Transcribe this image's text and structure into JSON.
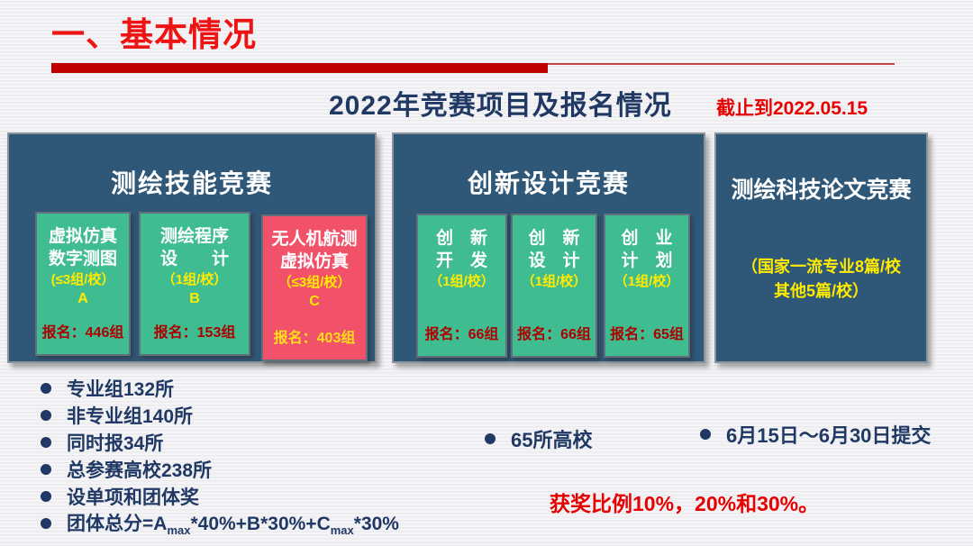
{
  "header": {
    "title": "一、基本情况"
  },
  "subtitle": {
    "title": "2022年竞赛项目及报名情况",
    "deadline_note": "截止到2022.05.15"
  },
  "panels": [
    {
      "title": "测绘技能竞赛",
      "boxes": [
        {
          "name_line1": "虚拟仿真",
          "name_line2": "数字测图",
          "quota": "(≤3组/校）",
          "letter": "A",
          "registration": "报名：446组"
        },
        {
          "name_line1": "测绘程序",
          "name_line2": "设　　计",
          "quota": "（1组/校）",
          "letter": "B",
          "registration": "报名：153组"
        },
        {
          "name_line1": "无人机航测",
          "name_line2": "虚拟仿真",
          "quota": "（≤3组/校）",
          "letter": "C",
          "registration": "报名：403组"
        }
      ]
    },
    {
      "title": "创新设计竞赛",
      "boxes": [
        {
          "name_line1": "创　新",
          "name_line2": "开　发",
          "quota": "（1组/校）",
          "registration": "报名：66组"
        },
        {
          "name_line1": "创　新",
          "name_line2": "设　计",
          "quota": "（1组/校）",
          "registration": "报名：66组"
        },
        {
          "name_line1": "创　业",
          "name_line2": "计　划",
          "quota": "（1组/校）",
          "registration": "报名：65组"
        }
      ]
    },
    {
      "title": "测绘科技论文竞赛",
      "note_line1": "（国家一流专业8篇/校",
      "note_line2": "其他5篇/校）"
    }
  ],
  "stats": {
    "left_bullets": [
      [
        {
          "t": "专业组132所"
        }
      ],
      [
        {
          "t": "非专业组140所"
        }
      ],
      [
        {
          "t": "同时报34所"
        }
      ],
      [
        {
          "t": "总参赛高校238所"
        }
      ],
      [
        {
          "t": "设单项和团体奖"
        }
      ],
      [
        {
          "t": "团体总分=A"
        },
        {
          "t": "max",
          "sub": true
        },
        {
          "t": "*40%+B*30%+C"
        },
        {
          "t": "max",
          "sub": true
        },
        {
          "t": "*30%"
        }
      ]
    ],
    "middle_bullet": "65所高校",
    "right_bullet": "6月15日～6月30日提交",
    "award_note": "获奖比例10%，20%和30%。"
  },
  "colors": {
    "header_red": "#ee1414",
    "rule_red": "#c00000",
    "navy_text": "#1f3864",
    "bright_red": "#e60000",
    "panel_blue": "#2f5878",
    "box_teal": "#3fbc90",
    "box_pink": "#f2516a",
    "quota_yellow": "#ffeb00",
    "registration_darkred": "#ae0000"
  }
}
